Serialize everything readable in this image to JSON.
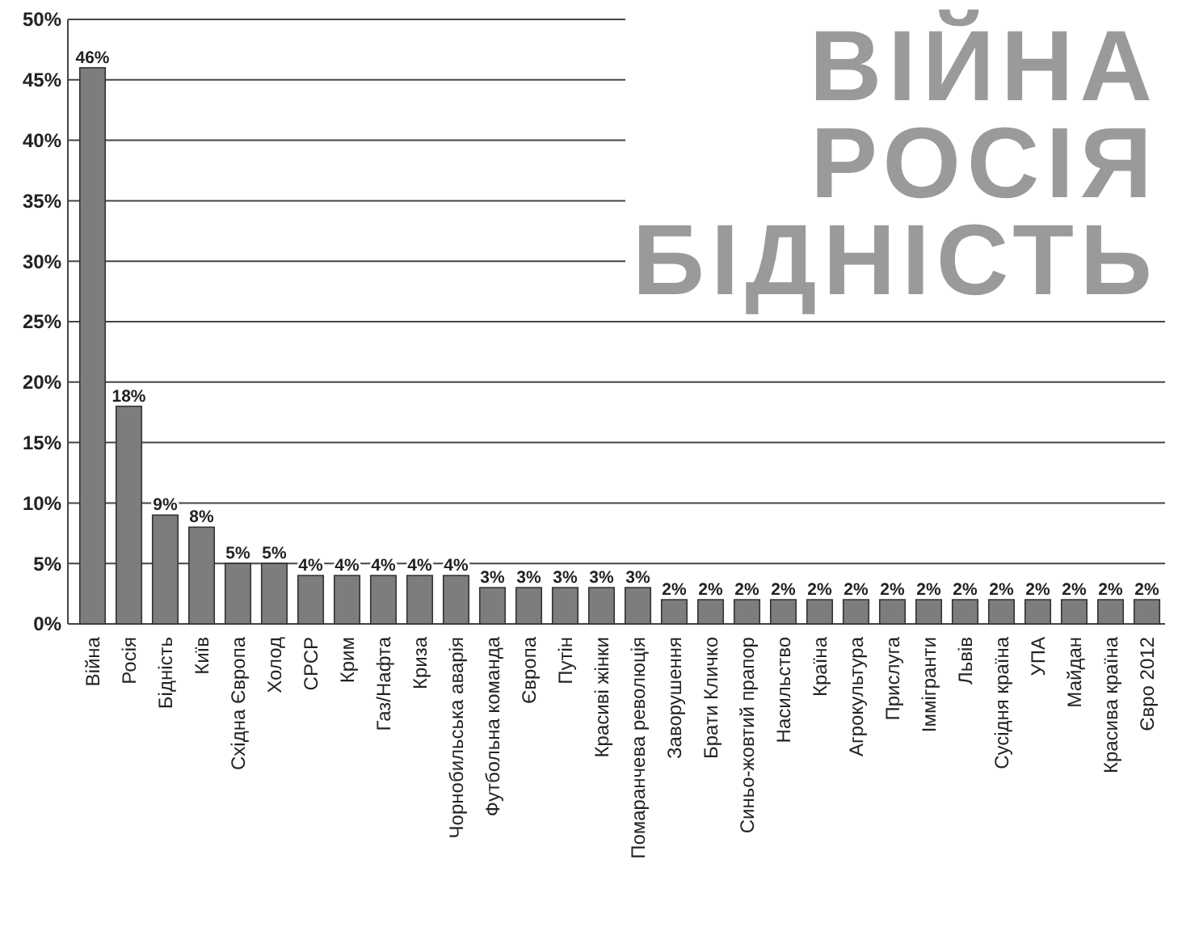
{
  "chart_data": {
    "type": "bar",
    "categories": [
      "Війна",
      "Росія",
      "Бідність",
      "Київ",
      "Східна Європа",
      "Холод",
      "СРСР",
      "Крим",
      "Газ/Нафта",
      "Криза",
      "Чорнобильська аварія",
      "Футбольна команда",
      "Європа",
      "Путін",
      "Красиві жінки",
      "Помаранчева революція",
      "Заворушення",
      "Брати Кличко",
      "Синьо-жовтий прапор",
      "Насильство",
      "Країна",
      "Агрокультура",
      "Прислуга",
      "Іммігранти",
      "Львів",
      "Сусідня країна",
      "УПА",
      "Майдан",
      "Красива країна",
      "Євро 2012"
    ],
    "values": [
      46,
      18,
      9,
      8,
      5,
      5,
      4,
      4,
      4,
      4,
      4,
      3,
      3,
      3,
      3,
      3,
      2,
      2,
      2,
      2,
      2,
      2,
      2,
      2,
      2,
      2,
      2,
      2,
      2,
      2
    ],
    "value_labels": [
      "46%",
      "18%",
      "9%",
      "8%",
      "5%",
      "5%",
      "4%",
      "4%",
      "4%",
      "4%",
      "4%",
      "3%",
      "3%",
      "3%",
      "3%",
      "3%",
      "2%",
      "2%",
      "2%",
      "2%",
      "2%",
      "2%",
      "2%",
      "2%",
      "2%",
      "2%",
      "2%",
      "2%",
      "2%",
      "2%"
    ],
    "color": "#7d7d7d",
    "ylim": [
      0,
      50
    ],
    "yticks": [
      {
        "value": 0,
        "label": "0%"
      },
      {
        "value": 5,
        "label": "5%"
      },
      {
        "value": 10,
        "label": "10%"
      },
      {
        "value": 15,
        "label": "15%"
      },
      {
        "value": 20,
        "label": "20%"
      },
      {
        "value": 25,
        "label": "25%"
      },
      {
        "value": 30,
        "label": "30%"
      },
      {
        "value": 35,
        "label": "35%"
      },
      {
        "value": 40,
        "label": "40%"
      },
      {
        "value": 45,
        "label": "45%"
      },
      {
        "value": 50,
        "label": "50%"
      }
    ],
    "grid": "y",
    "annotations": [
      "ВІЙНА",
      "РОСІЯ",
      "БІДНІСТЬ"
    ]
  }
}
